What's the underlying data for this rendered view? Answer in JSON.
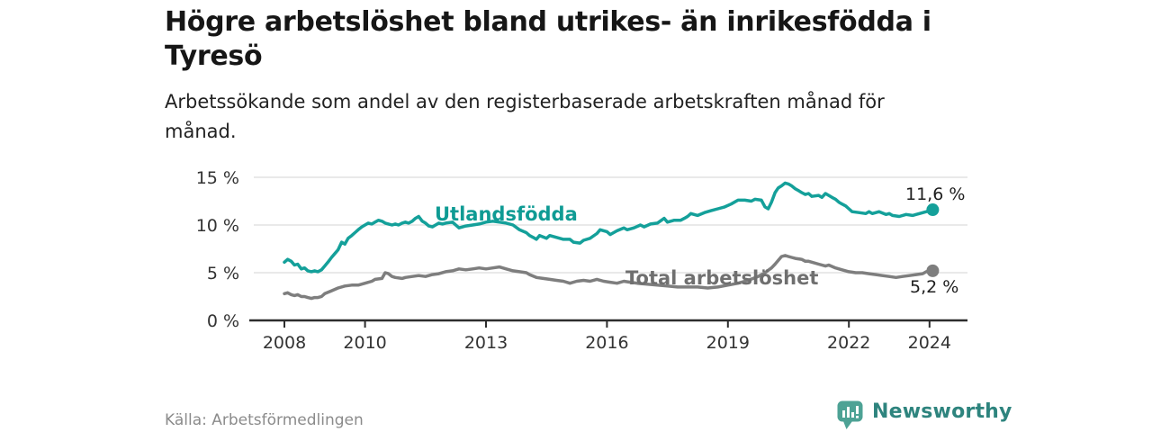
{
  "header": {
    "title_lines": [
      "Högre arbetslöshet bland utrikes- än inrikesfödda i",
      "Tyresö"
    ],
    "subtitle_lines": [
      "Arbetssökande som andel av den registerbaserade arbetskraften månad för",
      "månad."
    ]
  },
  "chart_data": {
    "type": "line",
    "title": "Högre arbetslöshet bland utrikes- än inrikesfödda i Tyresö",
    "subtitle": "Arbetssökande som andel av den registerbaserade arbetskraften månad för månad.",
    "unit": "%",
    "grid": "horizontal-on",
    "legend": "inline-series-labels",
    "y_axis": {
      "range": [
        0,
        15
      ],
      "ticks": [
        0,
        5,
        10,
        15
      ],
      "labels": [
        "0 %",
        "5 %",
        "10 %",
        "15 %"
      ]
    },
    "x_axis": {
      "range": [
        2007.15,
        2024.95
      ],
      "ticks": [
        2008,
        2010,
        2013,
        2016,
        2019,
        2022,
        2024
      ],
      "labels": [
        "2008",
        "2010",
        "2013",
        "2016",
        "2019",
        "2022",
        "2024"
      ]
    },
    "series": [
      {
        "name": "Utlandsfödda",
        "color": "#14a09a",
        "end_label": "11,6 %",
        "end_value": 11.6,
        "points": [
          [
            2008.0,
            6.1
          ],
          [
            2008.08,
            6.4
          ],
          [
            2008.17,
            6.2
          ],
          [
            2008.25,
            5.8
          ],
          [
            2008.33,
            5.9
          ],
          [
            2008.42,
            5.4
          ],
          [
            2008.5,
            5.5
          ],
          [
            2008.58,
            5.2
          ],
          [
            2008.67,
            5.1
          ],
          [
            2008.75,
            5.2
          ],
          [
            2008.83,
            5.1
          ],
          [
            2008.92,
            5.3
          ],
          [
            2009.0,
            5.7
          ],
          [
            2009.08,
            6.1
          ],
          [
            2009.17,
            6.6
          ],
          [
            2009.25,
            7.0
          ],
          [
            2009.33,
            7.4
          ],
          [
            2009.42,
            8.2
          ],
          [
            2009.5,
            8.0
          ],
          [
            2009.58,
            8.6
          ],
          [
            2009.67,
            8.9
          ],
          [
            2009.75,
            9.2
          ],
          [
            2009.83,
            9.5
          ],
          [
            2009.92,
            9.8
          ],
          [
            2010.0,
            10.0
          ],
          [
            2010.08,
            10.2
          ],
          [
            2010.17,
            10.1
          ],
          [
            2010.25,
            10.3
          ],
          [
            2010.33,
            10.5
          ],
          [
            2010.42,
            10.4
          ],
          [
            2010.5,
            10.2
          ],
          [
            2010.58,
            10.1
          ],
          [
            2010.67,
            10.0
          ],
          [
            2010.75,
            10.1
          ],
          [
            2010.83,
            10.0
          ],
          [
            2010.92,
            10.2
          ],
          [
            2011.0,
            10.3
          ],
          [
            2011.08,
            10.2
          ],
          [
            2011.17,
            10.4
          ],
          [
            2011.25,
            10.7
          ],
          [
            2011.33,
            10.9
          ],
          [
            2011.42,
            10.4
          ],
          [
            2011.5,
            10.2
          ],
          [
            2011.58,
            9.9
          ],
          [
            2011.67,
            9.8
          ],
          [
            2011.75,
            10.0
          ],
          [
            2011.83,
            10.2
          ],
          [
            2011.92,
            10.1
          ],
          [
            2012.0,
            10.2
          ],
          [
            2012.17,
            10.3
          ],
          [
            2012.33,
            9.7
          ],
          [
            2012.5,
            9.9
          ],
          [
            2012.67,
            10.0
          ],
          [
            2012.83,
            10.1
          ],
          [
            2013.0,
            10.3
          ],
          [
            2013.17,
            10.4
          ],
          [
            2013.33,
            10.3
          ],
          [
            2013.5,
            10.2
          ],
          [
            2013.67,
            10.0
          ],
          [
            2013.83,
            9.5
          ],
          [
            2014.0,
            9.2
          ],
          [
            2014.08,
            8.9
          ],
          [
            2014.17,
            8.7
          ],
          [
            2014.25,
            8.5
          ],
          [
            2014.33,
            8.9
          ],
          [
            2014.5,
            8.6
          ],
          [
            2014.58,
            8.9
          ],
          [
            2014.75,
            8.7
          ],
          [
            2014.92,
            8.5
          ],
          [
            2015.08,
            8.5
          ],
          [
            2015.17,
            8.2
          ],
          [
            2015.33,
            8.1
          ],
          [
            2015.42,
            8.4
          ],
          [
            2015.58,
            8.6
          ],
          [
            2015.75,
            9.1
          ],
          [
            2015.83,
            9.5
          ],
          [
            2016.0,
            9.3
          ],
          [
            2016.08,
            9.0
          ],
          [
            2016.25,
            9.4
          ],
          [
            2016.42,
            9.7
          ],
          [
            2016.5,
            9.5
          ],
          [
            2016.67,
            9.7
          ],
          [
            2016.83,
            10.0
          ],
          [
            2016.92,
            9.8
          ],
          [
            2017.08,
            10.1
          ],
          [
            2017.25,
            10.2
          ],
          [
            2017.42,
            10.7
          ],
          [
            2017.5,
            10.3
          ],
          [
            2017.67,
            10.5
          ],
          [
            2017.83,
            10.5
          ],
          [
            2017.92,
            10.7
          ],
          [
            2018.0,
            10.9
          ],
          [
            2018.08,
            11.2
          ],
          [
            2018.25,
            11.0
          ],
          [
            2018.42,
            11.3
          ],
          [
            2018.58,
            11.5
          ],
          [
            2018.75,
            11.7
          ],
          [
            2018.92,
            11.9
          ],
          [
            2019.08,
            12.2
          ],
          [
            2019.25,
            12.6
          ],
          [
            2019.42,
            12.6
          ],
          [
            2019.58,
            12.5
          ],
          [
            2019.67,
            12.7
          ],
          [
            2019.83,
            12.6
          ],
          [
            2019.92,
            11.9
          ],
          [
            2020.0,
            11.7
          ],
          [
            2020.08,
            12.4
          ],
          [
            2020.17,
            13.4
          ],
          [
            2020.25,
            13.9
          ],
          [
            2020.33,
            14.1
          ],
          [
            2020.42,
            14.4
          ],
          [
            2020.5,
            14.3
          ],
          [
            2020.58,
            14.1
          ],
          [
            2020.67,
            13.8
          ],
          [
            2020.75,
            13.6
          ],
          [
            2020.83,
            13.4
          ],
          [
            2020.92,
            13.2
          ],
          [
            2021.0,
            13.3
          ],
          [
            2021.08,
            13.0
          ],
          [
            2021.25,
            13.1
          ],
          [
            2021.33,
            12.9
          ],
          [
            2021.42,
            13.3
          ],
          [
            2021.5,
            13.1
          ],
          [
            2021.58,
            12.9
          ],
          [
            2021.67,
            12.7
          ],
          [
            2021.75,
            12.4
          ],
          [
            2021.83,
            12.2
          ],
          [
            2021.92,
            12.0
          ],
          [
            2022.0,
            11.7
          ],
          [
            2022.08,
            11.4
          ],
          [
            2022.25,
            11.3
          ],
          [
            2022.42,
            11.2
          ],
          [
            2022.5,
            11.4
          ],
          [
            2022.58,
            11.2
          ],
          [
            2022.75,
            11.4
          ],
          [
            2022.92,
            11.1
          ],
          [
            2023.0,
            11.2
          ],
          [
            2023.08,
            11.0
          ],
          [
            2023.25,
            10.9
          ],
          [
            2023.42,
            11.1
          ],
          [
            2023.58,
            11.0
          ],
          [
            2023.75,
            11.2
          ],
          [
            2023.92,
            11.4
          ],
          [
            2024.08,
            11.6
          ]
        ]
      },
      {
        "name": "Total arbetslöshet",
        "color": "#7e7e7e",
        "end_label": "5,2 %",
        "end_value": 5.2,
        "points": [
          [
            2008.0,
            2.8
          ],
          [
            2008.08,
            2.9
          ],
          [
            2008.17,
            2.7
          ],
          [
            2008.25,
            2.6
          ],
          [
            2008.33,
            2.7
          ],
          [
            2008.42,
            2.5
          ],
          [
            2008.5,
            2.5
          ],
          [
            2008.58,
            2.4
          ],
          [
            2008.67,
            2.3
          ],
          [
            2008.75,
            2.4
          ],
          [
            2008.83,
            2.4
          ],
          [
            2008.92,
            2.5
          ],
          [
            2009.0,
            2.8
          ],
          [
            2009.17,
            3.1
          ],
          [
            2009.33,
            3.4
          ],
          [
            2009.5,
            3.6
          ],
          [
            2009.67,
            3.7
          ],
          [
            2009.83,
            3.7
          ],
          [
            2010.0,
            3.9
          ],
          [
            2010.17,
            4.1
          ],
          [
            2010.25,
            4.3
          ],
          [
            2010.42,
            4.4
          ],
          [
            2010.5,
            5.0
          ],
          [
            2010.58,
            4.9
          ],
          [
            2010.67,
            4.6
          ],
          [
            2010.75,
            4.5
          ],
          [
            2010.92,
            4.4
          ],
          [
            2011.0,
            4.5
          ],
          [
            2011.17,
            4.6
          ],
          [
            2011.33,
            4.7
          ],
          [
            2011.5,
            4.6
          ],
          [
            2011.67,
            4.8
          ],
          [
            2011.83,
            4.9
          ],
          [
            2012.0,
            5.1
          ],
          [
            2012.17,
            5.2
          ],
          [
            2012.33,
            5.4
          ],
          [
            2012.5,
            5.3
          ],
          [
            2012.67,
            5.4
          ],
          [
            2012.83,
            5.5
          ],
          [
            2013.0,
            5.4
          ],
          [
            2013.17,
            5.5
          ],
          [
            2013.33,
            5.6
          ],
          [
            2013.5,
            5.4
          ],
          [
            2013.67,
            5.2
          ],
          [
            2013.83,
            5.1
          ],
          [
            2014.0,
            5.0
          ],
          [
            2014.08,
            4.8
          ],
          [
            2014.25,
            4.5
          ],
          [
            2014.42,
            4.4
          ],
          [
            2014.58,
            4.3
          ],
          [
            2014.75,
            4.2
          ],
          [
            2014.92,
            4.1
          ],
          [
            2015.08,
            3.9
          ],
          [
            2015.25,
            4.1
          ],
          [
            2015.42,
            4.2
          ],
          [
            2015.58,
            4.1
          ],
          [
            2015.75,
            4.3
          ],
          [
            2015.92,
            4.1
          ],
          [
            2016.08,
            4.0
          ],
          [
            2016.25,
            3.9
          ],
          [
            2016.42,
            4.1
          ],
          [
            2016.58,
            4.0
          ],
          [
            2016.75,
            3.9
          ],
          [
            2017.0,
            3.8
          ],
          [
            2017.25,
            3.7
          ],
          [
            2017.5,
            3.6
          ],
          [
            2017.75,
            3.5
          ],
          [
            2018.0,
            3.5
          ],
          [
            2018.25,
            3.5
          ],
          [
            2018.5,
            3.4
          ],
          [
            2018.75,
            3.5
          ],
          [
            2019.0,
            3.7
          ],
          [
            2019.25,
            3.9
          ],
          [
            2019.5,
            4.2
          ],
          [
            2019.75,
            4.6
          ],
          [
            2019.92,
            5.0
          ],
          [
            2020.08,
            5.5
          ],
          [
            2020.17,
            5.9
          ],
          [
            2020.25,
            6.3
          ],
          [
            2020.33,
            6.7
          ],
          [
            2020.42,
            6.8
          ],
          [
            2020.5,
            6.7
          ],
          [
            2020.58,
            6.6
          ],
          [
            2020.67,
            6.5
          ],
          [
            2020.83,
            6.4
          ],
          [
            2020.92,
            6.2
          ],
          [
            2021.0,
            6.2
          ],
          [
            2021.08,
            6.1
          ],
          [
            2021.25,
            5.9
          ],
          [
            2021.42,
            5.7
          ],
          [
            2021.5,
            5.8
          ],
          [
            2021.67,
            5.5
          ],
          [
            2021.83,
            5.3
          ],
          [
            2021.92,
            5.2
          ],
          [
            2022.0,
            5.1
          ],
          [
            2022.17,
            5.0
          ],
          [
            2022.33,
            5.0
          ],
          [
            2022.5,
            4.9
          ],
          [
            2022.67,
            4.8
          ],
          [
            2022.83,
            4.7
          ],
          [
            2023.0,
            4.6
          ],
          [
            2023.17,
            4.5
          ],
          [
            2023.33,
            4.6
          ],
          [
            2023.5,
            4.7
          ],
          [
            2023.67,
            4.8
          ],
          [
            2023.83,
            4.9
          ],
          [
            2023.92,
            5.1
          ],
          [
            2024.08,
            5.2
          ]
        ]
      }
    ]
  },
  "footer": {
    "source": "Källa: Arbetsförmedlingen",
    "brand_name": "Newsworthy",
    "brand_color": "#4da295",
    "brand_text_color": "#2e847e"
  }
}
